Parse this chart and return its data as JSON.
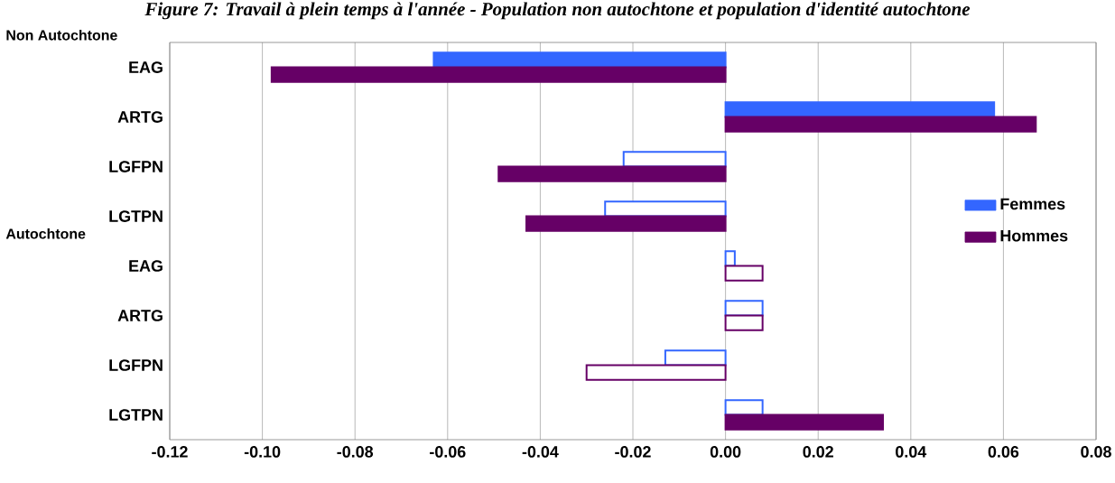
{
  "chart_data": {
    "type": "bar",
    "orientation": "horizontal",
    "title": "Figure 7: Travail à plein temps à l'année - Population non autochtone et population d'identité autochtone",
    "categories": [
      "EAG",
      "ARTG",
      "LGFPN",
      "LGTPN",
      "EAG",
      "ARTG",
      "LGFPN",
      "LGTPN"
    ],
    "series": [
      {
        "name": "Femmes",
        "color": "#3366ff",
        "colors": [
          "#3366ff",
          "#3366ff",
          "#ffffff",
          "#ffffff",
          "#ffffff",
          "#ffffff",
          "#ffffff",
          "#ffffff"
        ],
        "values": [
          -0.063,
          0.058,
          -0.022,
          -0.026,
          0.002,
          0.008,
          -0.013,
          0.008
        ]
      },
      {
        "name": "Hommes",
        "color": "#660066",
        "colors": [
          "#660066",
          "#660066",
          "#660066",
          "#660066",
          "#ffffff",
          "#ffffff",
          "#ffffff",
          "#660066"
        ],
        "values": [
          -0.098,
          0.067,
          -0.049,
          -0.043,
          0.008,
          0.008,
          -0.03,
          0.034
        ]
      }
    ],
    "xlim": [
      -0.12,
      0.08
    ],
    "xticks": [
      {
        "value": -0.12,
        "label": "-0.12"
      },
      {
        "value": -0.1,
        "label": "-0.10"
      },
      {
        "value": -0.08,
        "label": "-0.08"
      },
      {
        "value": -0.06,
        "label": "-0.06"
      },
      {
        "value": -0.04,
        "label": "-0.04"
      },
      {
        "value": -0.02,
        "label": "-0.02"
      },
      {
        "value": 0,
        "label": "0.00"
      },
      {
        "value": 0.02,
        "label": "0.02"
      },
      {
        "value": 0.04,
        "label": "0.04"
      },
      {
        "value": 0.06,
        "label": "0.06"
      },
      {
        "value": 0.08,
        "label": "0.08"
      }
    ],
    "grid": "x",
    "legend": "right",
    "annotations": [
      "Non Autochtone",
      "Autochtone"
    ]
  }
}
